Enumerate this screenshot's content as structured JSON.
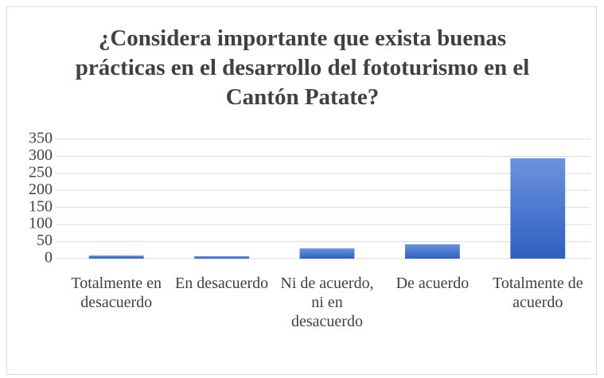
{
  "chart_data": {
    "type": "bar",
    "title": "¿Considera importante que exista buenas prácticas en el desarrollo del fototurismo en el Cantón Patate?",
    "categories": [
      "Totalmente en desacuerdo",
      "En desacuerdo",
      "Ni de acuerdo, ni en desacuerdo",
      "De acuerdo",
      "Totalmente de acuerdo"
    ],
    "values": [
      9,
      7,
      30,
      42,
      294
    ],
    "color": "#4472c4",
    "ylim": [
      0,
      350
    ],
    "yticks": [
      0,
      50,
      100,
      150,
      200,
      250,
      300,
      350
    ],
    "grid": true
  }
}
